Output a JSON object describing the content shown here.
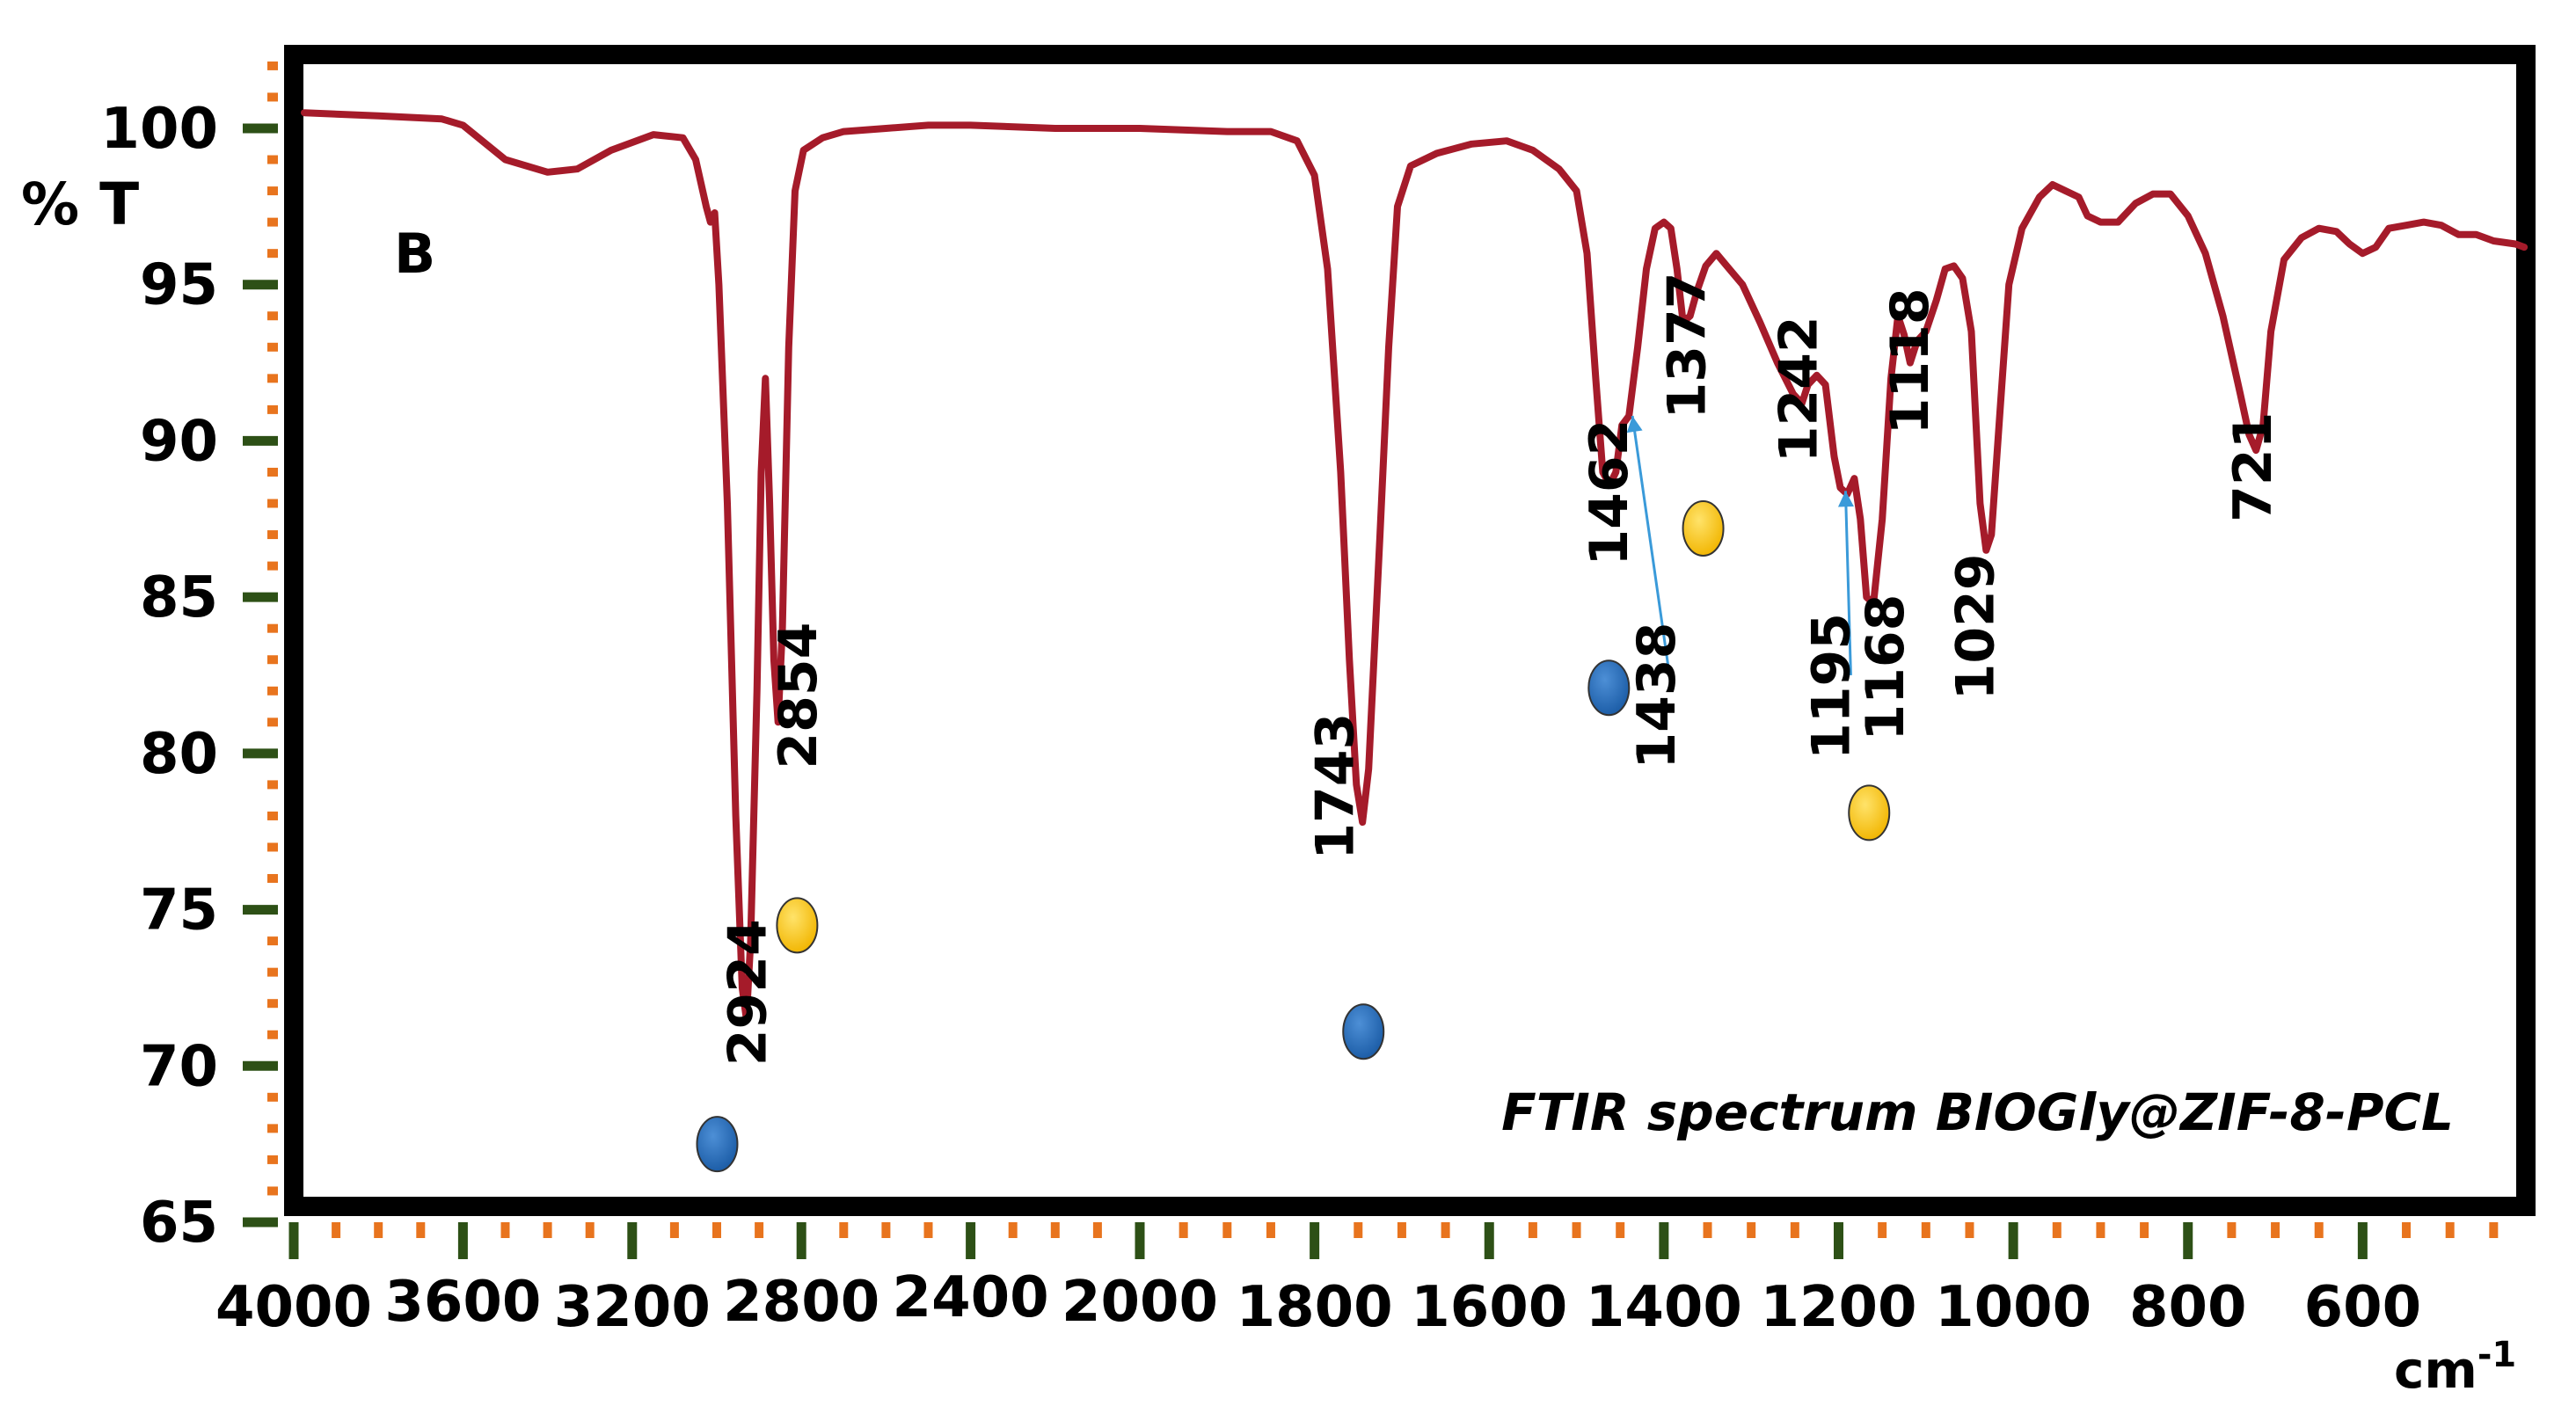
{
  "chart_data": {
    "type": "line",
    "panel_label": "B",
    "title": "FTIR spectrum BIOGly@ZIF-8-PCL",
    "ylabel": "% T",
    "xlabel_base": "cm",
    "xlabel_exp": "-1",
    "xlim": [
      4000,
      410
    ],
    "ylim": [
      65,
      102.5
    ],
    "x_ticks": [
      "4000",
      "3600",
      "3200",
      "2800",
      "2400",
      "2000",
      "1800",
      "1600",
      "1400",
      "1200",
      "1000",
      "800",
      "600"
    ],
    "y_ticks": [
      "100",
      "95",
      "90",
      "85",
      "80",
      "75",
      "70",
      "65"
    ],
    "colors": {
      "spectrum": "#a51b2a",
      "frame": "#000000",
      "major_tick": "#2d5016",
      "minor_tick": "#e8741e",
      "annotation_arrow": "#3a9ad9",
      "marker_blue": "#1d5ea8",
      "marker_yellow": "#f2b705"
    },
    "series": [
      {
        "name": "BIOGly@ZIF-8-PCL",
        "points": [
          [
            3975,
            100.5
          ],
          [
            3800,
            100.4
          ],
          [
            3650,
            100.3
          ],
          [
            3600,
            100.1
          ],
          [
            3500,
            99.0
          ],
          [
            3400,
            98.6
          ],
          [
            3330,
            98.7
          ],
          [
            3250,
            99.3
          ],
          [
            3150,
            99.8
          ],
          [
            3080,
            99.7
          ],
          [
            3050,
            99.0
          ],
          [
            3025,
            97.5
          ],
          [
            3015,
            97.0
          ],
          [
            3005,
            97.3
          ],
          [
            2995,
            95.0
          ],
          [
            2975,
            88.0
          ],
          [
            2955,
            78.0
          ],
          [
            2940,
            72.5
          ],
          [
            2930,
            71.5
          ],
          [
            2920,
            74.0
          ],
          [
            2905,
            82.0
          ],
          [
            2895,
            89.0
          ],
          [
            2885,
            92.0
          ],
          [
            2875,
            88.0
          ],
          [
            2865,
            83.0
          ],
          [
            2855,
            81.0
          ],
          [
            2845,
            84.0
          ],
          [
            2830,
            93.0
          ],
          [
            2815,
            98.0
          ],
          [
            2795,
            99.3
          ],
          [
            2750,
            99.7
          ],
          [
            2700,
            99.9
          ],
          [
            2600,
            100.0
          ],
          [
            2500,
            100.1
          ],
          [
            2400,
            100.1
          ],
          [
            2200,
            100.0
          ],
          [
            2000,
            100.0
          ],
          [
            1900,
            99.9
          ],
          [
            1850,
            99.9
          ],
          [
            1820,
            99.6
          ],
          [
            1800,
            98.5
          ],
          [
            1785,
            95.5
          ],
          [
            1770,
            89.0
          ],
          [
            1760,
            83.0
          ],
          [
            1752,
            79.0
          ],
          [
            1745,
            77.8
          ],
          [
            1738,
            79.5
          ],
          [
            1725,
            87.0
          ],
          [
            1715,
            93.0
          ],
          [
            1705,
            97.5
          ],
          [
            1690,
            98.8
          ],
          [
            1660,
            99.2
          ],
          [
            1620,
            99.5
          ],
          [
            1580,
            99.6
          ],
          [
            1550,
            99.3
          ],
          [
            1520,
            98.7
          ],
          [
            1500,
            98.0
          ],
          [
            1488,
            96.0
          ],
          [
            1478,
            92.0
          ],
          [
            1470,
            89.0
          ],
          [
            1462,
            88.6
          ],
          [
            1455,
            89.0
          ],
          [
            1448,
            90.5
          ],
          [
            1440,
            90.8
          ],
          [
            1430,
            93.0
          ],
          [
            1420,
            95.5
          ],
          [
            1410,
            96.8
          ],
          [
            1400,
            97.0
          ],
          [
            1392,
            96.8
          ],
          [
            1385,
            95.5
          ],
          [
            1378,
            93.8
          ],
          [
            1370,
            94.0
          ],
          [
            1362,
            94.8
          ],
          [
            1352,
            95.6
          ],
          [
            1340,
            96.0
          ],
          [
            1328,
            95.6
          ],
          [
            1310,
            95.0
          ],
          [
            1290,
            93.8
          ],
          [
            1270,
            92.5
          ],
          [
            1252,
            91.5
          ],
          [
            1242,
            91.2
          ],
          [
            1235,
            91.8
          ],
          [
            1225,
            92.1
          ],
          [
            1215,
            91.8
          ],
          [
            1205,
            89.5
          ],
          [
            1198,
            88.5
          ],
          [
            1190,
            88.3
          ],
          [
            1182,
            88.8
          ],
          [
            1175,
            87.5
          ],
          [
            1168,
            85.0
          ],
          [
            1160,
            84.8
          ],
          [
            1150,
            87.5
          ],
          [
            1140,
            92.0
          ],
          [
            1132,
            94.0
          ],
          [
            1125,
            93.4
          ],
          [
            1118,
            92.5
          ],
          [
            1110,
            93.2
          ],
          [
            1100,
            93.5
          ],
          [
            1088,
            94.5
          ],
          [
            1078,
            95.5
          ],
          [
            1068,
            95.6
          ],
          [
            1058,
            95.2
          ],
          [
            1048,
            93.5
          ],
          [
            1038,
            88.0
          ],
          [
            1031,
            86.5
          ],
          [
            1025,
            87.0
          ],
          [
            1015,
            91.0
          ],
          [
            1005,
            95.0
          ],
          [
            990,
            96.8
          ],
          [
            970,
            97.8
          ],
          [
            955,
            98.2
          ],
          [
            940,
            98.0
          ],
          [
            925,
            97.8
          ],
          [
            915,
            97.2
          ],
          [
            900,
            97.0
          ],
          [
            880,
            97.0
          ],
          [
            860,
            97.6
          ],
          [
            840,
            97.9
          ],
          [
            820,
            97.9
          ],
          [
            800,
            97.2
          ],
          [
            780,
            96.0
          ],
          [
            760,
            94.0
          ],
          [
            740,
            91.5
          ],
          [
            730,
            90.2
          ],
          [
            722,
            89.7
          ],
          [
            714,
            90.5
          ],
          [
            705,
            93.5
          ],
          [
            690,
            95.8
          ],
          [
            670,
            96.5
          ],
          [
            650,
            96.8
          ],
          [
            630,
            96.7
          ],
          [
            615,
            96.3
          ],
          [
            600,
            96.0
          ],
          [
            585,
            96.2
          ],
          [
            570,
            96.8
          ],
          [
            550,
            96.9
          ],
          [
            530,
            97.0
          ],
          [
            510,
            96.9
          ],
          [
            490,
            96.6
          ],
          [
            470,
            96.6
          ],
          [
            450,
            96.4
          ],
          [
            425,
            96.3
          ],
          [
            415,
            96.2
          ]
        ]
      }
    ],
    "annotations": [
      {
        "label": "2924",
        "x": 2885,
        "y": 70.0,
        "marker": "blue",
        "marker_x": 2999,
        "marker_y": 67.5
      },
      {
        "label": "2854",
        "x": 2765,
        "y": 79.5,
        "marker": "yellow",
        "marker_x": 2810,
        "marker_y": 74.5
      },
      {
        "label": "1743",
        "x": 1756,
        "y": 76.6,
        "marker": "blue",
        "marker_x": 1744,
        "marker_y": 71.1
      },
      {
        "label": "1462",
        "x": 1442,
        "y": 86.0,
        "marker": "blue",
        "marker_x": 1463,
        "marker_y": 82.1
      },
      {
        "label": "1438",
        "x": 1388,
        "y": 79.5,
        "arrow_to": [
          1436,
          90.8
        ]
      },
      {
        "label": "1377",
        "x": 1353,
        "y": 90.7,
        "marker": "yellow",
        "marker_x": 1355,
        "marker_y": 87.2
      },
      {
        "label": "1242",
        "x": 1225,
        "y": 89.3
      },
      {
        "label": "1195",
        "x": 1188,
        "y": 79.8,
        "arrow_to": [
          1192,
          88.4
        ]
      },
      {
        "label": "1168",
        "x": 1126,
        "y": 80.4,
        "marker": "yellow",
        "marker_x": 1165,
        "marker_y": 78.1
      },
      {
        "label": "1118",
        "x": 1098,
        "y": 90.2
      },
      {
        "label": "1029",
        "x": 1023,
        "y": 81.7
      },
      {
        "label": "721",
        "x": 705,
        "y": 87.4
      }
    ]
  }
}
